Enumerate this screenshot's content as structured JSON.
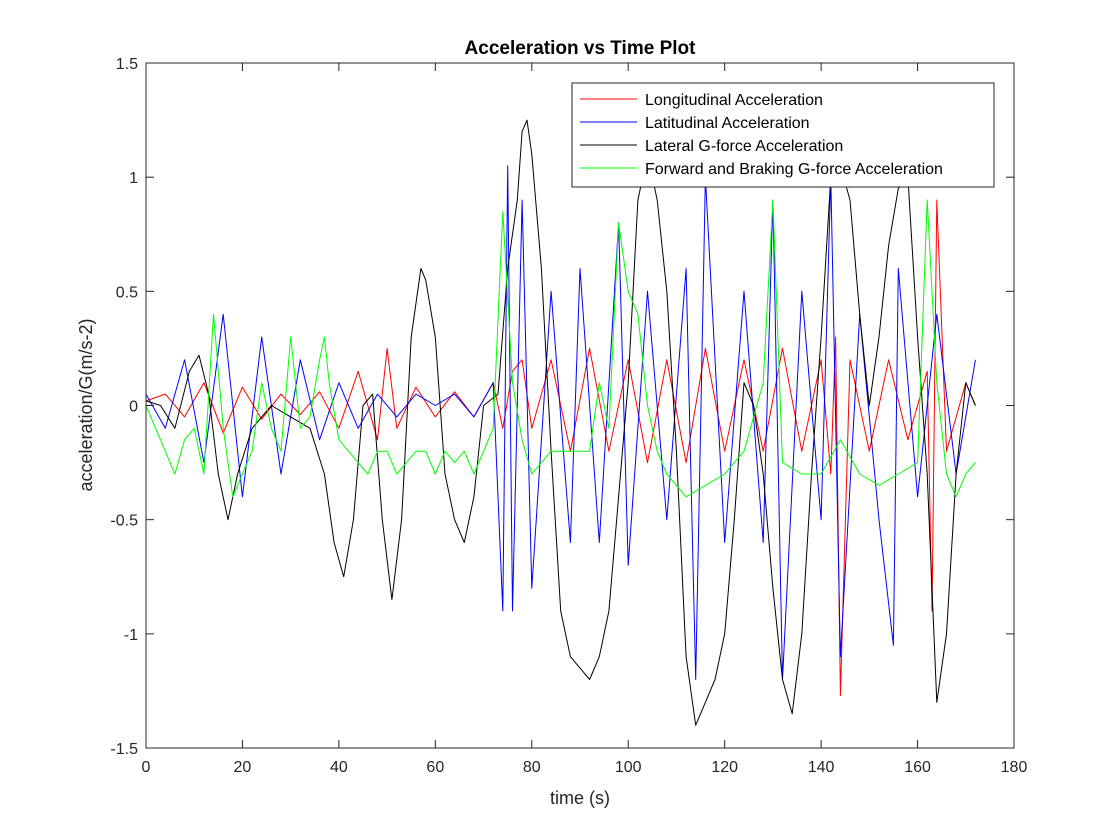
{
  "chart_data": {
    "type": "line",
    "title": "Acceleration vs Time Plot",
    "xlabel": "time (s)",
    "ylabel": "acceleration/G(m/s-2)",
    "xlim": [
      0,
      180
    ],
    "ylim": [
      -1.5,
      1.5
    ],
    "xticks": [
      0,
      20,
      40,
      60,
      80,
      100,
      120,
      140,
      160,
      180
    ],
    "xtick_labels": [
      "0",
      "20",
      "40",
      "60",
      "80",
      "100",
      "120",
      "140",
      "160",
      "180"
    ],
    "yticks": [
      -1.5,
      -1,
      -0.5,
      0,
      0.5,
      1,
      1.5
    ],
    "ytick_labels": [
      "-1.5",
      "-1",
      "-0.5",
      "0",
      "0.5",
      "1",
      "1.5"
    ],
    "grid": false,
    "legend_position": "top-right",
    "series": [
      {
        "name": "Longitudinal Acceleration",
        "color": "#ff0000",
        "x": [
          0,
          4,
          8,
          12,
          16,
          20,
          24,
          28,
          32,
          36,
          40,
          44,
          48,
          50,
          52,
          56,
          60,
          64,
          68,
          72,
          74,
          76,
          78,
          80,
          84,
          88,
          92,
          96,
          100,
          104,
          108,
          112,
          116,
          120,
          124,
          128,
          132,
          136,
          140,
          142,
          143,
          144,
          146,
          150,
          154,
          158,
          162,
          163,
          164,
          166,
          170,
          172
        ],
        "y": [
          0.02,
          0.05,
          -0.05,
          0.1,
          -0.12,
          0.08,
          -0.06,
          0.05,
          -0.04,
          0.06,
          -0.1,
          0.15,
          -0.15,
          0.25,
          -0.1,
          0.08,
          -0.05,
          0.06,
          -0.05,
          0.1,
          -0.1,
          0.15,
          0.2,
          -0.1,
          0.2,
          -0.2,
          0.25,
          -0.2,
          0.2,
          -0.25,
          0.2,
          -0.25,
          0.25,
          -0.2,
          0.2,
          -0.2,
          0.25,
          -0.2,
          0.2,
          -0.3,
          0.3,
          -1.27,
          0.2,
          -0.2,
          0.2,
          -0.15,
          0.15,
          -0.9,
          0.9,
          -0.2,
          0.1,
          0.0
        ]
      },
      {
        "name": "Latitudinal Acceleration",
        "color": "#0000ff",
        "x": [
          0,
          4,
          8,
          12,
          16,
          20,
          24,
          28,
          32,
          36,
          40,
          44,
          48,
          52,
          56,
          60,
          64,
          68,
          72,
          74,
          75,
          76,
          78,
          80,
          84,
          88,
          90,
          94,
          98,
          100,
          104,
          108,
          112,
          114,
          116,
          120,
          124,
          128,
          130,
          132,
          136,
          140,
          142,
          144,
          148,
          152,
          155,
          156,
          160,
          164,
          168,
          172
        ],
        "y": [
          0.05,
          -0.1,
          0.2,
          -0.25,
          0.4,
          -0.4,
          0.3,
          -0.3,
          0.2,
          -0.15,
          0.1,
          -0.1,
          0.05,
          -0.05,
          0.05,
          0.0,
          0.05,
          -0.05,
          0.1,
          -0.9,
          1.05,
          -0.9,
          0.9,
          -0.8,
          0.5,
          -0.6,
          0.6,
          -0.6,
          0.8,
          -0.7,
          0.5,
          -0.5,
          0.6,
          -1.2,
          1.0,
          -0.6,
          0.5,
          -0.6,
          0.9,
          -1.2,
          0.5,
          -0.5,
          1.0,
          -1.1,
          0.4,
          -0.5,
          -1.05,
          0.6,
          -0.4,
          0.4,
          -0.3,
          0.2
        ]
      },
      {
        "name": "Lateral G-force Acceleration",
        "color": "#000000",
        "x": [
          0,
          3,
          6,
          9,
          11,
          13,
          15,
          17,
          19,
          22,
          26,
          30,
          34,
          37,
          39,
          41,
          43,
          45,
          47,
          49,
          51,
          53,
          55,
          57,
          58,
          60,
          62,
          64,
          66,
          68,
          70,
          73,
          75,
          77,
          78,
          79,
          80,
          82,
          84,
          86,
          88,
          90,
          92,
          94,
          96,
          98,
          100,
          102,
          104,
          106,
          108,
          110,
          112,
          114,
          116,
          118,
          120,
          122,
          124,
          126,
          128,
          130,
          132,
          134,
          136,
          138,
          140,
          142,
          144,
          146,
          148,
          150,
          152,
          154,
          156,
          158,
          160,
          162,
          164,
          166,
          168,
          170,
          172
        ],
        "y": [
          0.02,
          0.0,
          -0.1,
          0.15,
          0.22,
          0.05,
          -0.3,
          -0.5,
          -0.3,
          -0.1,
          0.0,
          -0.05,
          -0.1,
          -0.3,
          -0.6,
          -0.75,
          -0.5,
          0.0,
          0.05,
          -0.5,
          -0.85,
          -0.5,
          0.3,
          0.6,
          0.55,
          0.3,
          -0.3,
          -0.5,
          -0.6,
          -0.4,
          0.0,
          0.05,
          0.6,
          0.9,
          1.2,
          1.25,
          1.1,
          0.6,
          -0.2,
          -0.9,
          -1.1,
          -1.15,
          -1.2,
          -1.1,
          -0.9,
          -0.4,
          0.1,
          0.9,
          1.1,
          0.9,
          0.5,
          -0.2,
          -1.1,
          -1.4,
          -1.3,
          -1.2,
          -1.0,
          -0.5,
          0.1,
          0.0,
          -0.3,
          -0.8,
          -1.2,
          -1.35,
          -1.0,
          -0.3,
          0.3,
          1.0,
          1.05,
          0.9,
          0.4,
          0.0,
          0.3,
          0.7,
          0.95,
          1.0,
          0.3,
          -0.3,
          -1.3,
          -1.0,
          -0.3,
          0.1,
          0.0
        ]
      },
      {
        "name": "Forward and Braking G-force Acceleration",
        "color": "#00ff00",
        "x": [
          0,
          2,
          4,
          6,
          8,
          10,
          12,
          14,
          16,
          18,
          20,
          22,
          24,
          26,
          28,
          30,
          32,
          34,
          36,
          37,
          38,
          40,
          42,
          44,
          46,
          48,
          50,
          52,
          54,
          56,
          58,
          60,
          62,
          64,
          66,
          68,
          70,
          72,
          74,
          76,
          78,
          80,
          84,
          88,
          92,
          94,
          96,
          98,
          100,
          102,
          104,
          106,
          108,
          110,
          112,
          116,
          120,
          124,
          128,
          130,
          132,
          136,
          140,
          144,
          148,
          152,
          156,
          160,
          162,
          164,
          166,
          168,
          170,
          172
        ],
        "y": [
          0.0,
          -0.1,
          -0.2,
          -0.3,
          -0.15,
          -0.1,
          -0.3,
          0.4,
          -0.1,
          -0.4,
          -0.3,
          -0.2,
          0.1,
          -0.1,
          -0.2,
          0.3,
          -0.1,
          -0.05,
          0.2,
          0.3,
          0.1,
          -0.15,
          -0.2,
          -0.25,
          -0.3,
          -0.2,
          -0.2,
          -0.3,
          -0.25,
          -0.2,
          -0.2,
          -0.3,
          -0.2,
          -0.25,
          -0.2,
          -0.3,
          -0.2,
          -0.1,
          0.85,
          0.1,
          -0.15,
          -0.3,
          -0.2,
          -0.2,
          -0.2,
          0.1,
          -0.1,
          0.8,
          0.5,
          0.4,
          0.0,
          -0.2,
          -0.3,
          -0.35,
          -0.4,
          -0.35,
          -0.3,
          -0.2,
          0.1,
          0.9,
          -0.25,
          -0.3,
          -0.3,
          -0.15,
          -0.3,
          -0.35,
          -0.3,
          -0.25,
          0.9,
          0.1,
          -0.3,
          -0.4,
          -0.3,
          -0.25
        ]
      }
    ]
  }
}
